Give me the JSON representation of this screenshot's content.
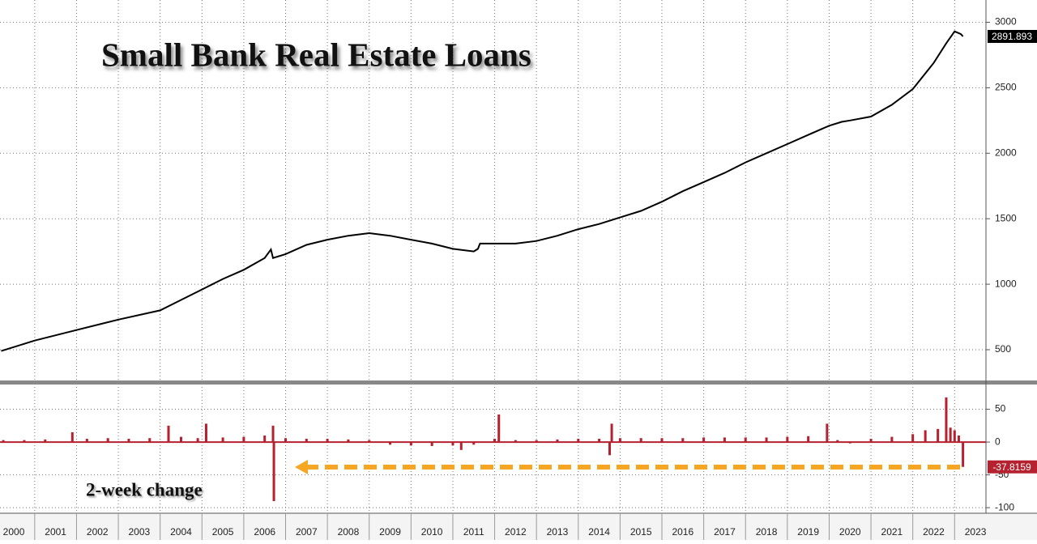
{
  "chart_data": [
    {
      "type": "line",
      "title": "Small Bank Real Estate Loans",
      "color": "#000000",
      "x": [
        2000.2,
        2001,
        2001.5,
        2002,
        2003,
        2004,
        2004.5,
        2005,
        2005.5,
        2006,
        2006.5,
        2006.65,
        2006.7,
        2007,
        2007.5,
        2008,
        2008.5,
        2009,
        2009.5,
        2010,
        2010.5,
        2011,
        2011.5,
        2011.6,
        2011.65,
        2012,
        2012.5,
        2013,
        2013.5,
        2014,
        2014.5,
        2015,
        2015.5,
        2016,
        2016.5,
        2017,
        2017.5,
        2018,
        2018.5,
        2019,
        2019.5,
        2020,
        2020.3,
        2020.5,
        2021,
        2021.5,
        2022,
        2022.5,
        2022.8,
        2023.0,
        2023.15,
        2023.2
      ],
      "values": [
        490,
        570,
        610,
        650,
        730,
        800,
        880,
        960,
        1040,
        1110,
        1200,
        1265,
        1200,
        1230,
        1300,
        1340,
        1370,
        1390,
        1370,
        1340,
        1310,
        1270,
        1250,
        1270,
        1310,
        1310,
        1310,
        1330,
        1370,
        1420,
        1460,
        1510,
        1560,
        1630,
        1710,
        1780,
        1850,
        1930,
        2000,
        2070,
        2140,
        2210,
        2240,
        2250,
        2280,
        2370,
        2490,
        2690,
        2840,
        2930,
        2910,
        2891.893
      ],
      "xlim": [
        2000.17,
        2023.75
      ],
      "ylim": [
        265,
        3170
      ],
      "yticks": [
        500,
        1000,
        1500,
        2000,
        2500,
        3000
      ],
      "grid": true
    },
    {
      "type": "bar",
      "annotation": "2-week change",
      "color": "#b5212f",
      "x": [
        2000.25,
        2000.75,
        2001.25,
        2001.9,
        2002.25,
        2002.75,
        2003.25,
        2003.75,
        2004.2,
        2004.5,
        2004.9,
        2005.1,
        2005.5,
        2006,
        2006.5,
        2006.7,
        2006.72,
        2007,
        2007.5,
        2008,
        2008.5,
        2009,
        2009.5,
        2010,
        2010.5,
        2011,
        2011.2,
        2011.5,
        2012,
        2012.1,
        2012.5,
        2013,
        2013.5,
        2014,
        2014.5,
        2014.75,
        2014.8,
        2015,
        2015.5,
        2016,
        2016.5,
        2017,
        2017.5,
        2018,
        2018.5,
        2019,
        2019.5,
        2019.95,
        2020.2,
        2020.5,
        2021,
        2021.5,
        2022,
        2022.3,
        2022.6,
        2022.8,
        2022.9,
        2023,
        2023.1,
        2023.2
      ],
      "values": [
        3,
        3,
        4,
        15,
        5,
        6,
        5,
        6,
        25,
        8,
        6,
        28,
        7,
        8,
        10,
        25,
        -90,
        6,
        5,
        5,
        4,
        3,
        -4,
        -5,
        -6,
        -5,
        -12,
        -4,
        5,
        42,
        3,
        3,
        4,
        5,
        5,
        -20,
        28,
        6,
        6,
        6,
        6,
        7,
        7,
        7,
        7,
        8,
        9,
        28,
        3,
        -2,
        5,
        8,
        12,
        18,
        20,
        68,
        22,
        18,
        10,
        -37.8159
      ],
      "xlim": [
        2000.17,
        2023.75
      ],
      "ylim": [
        -106,
        84
      ],
      "yticks": [
        50,
        0,
        -50,
        -100
      ],
      "grid": true,
      "xticks": [
        2000,
        2001,
        2002,
        2003,
        2004,
        2005,
        2006,
        2007,
        2008,
        2009,
        2010,
        2011,
        2012,
        2013,
        2014,
        2015,
        2016,
        2017,
        2018,
        2019,
        2020,
        2021,
        2022,
        2023
      ]
    }
  ]
}
